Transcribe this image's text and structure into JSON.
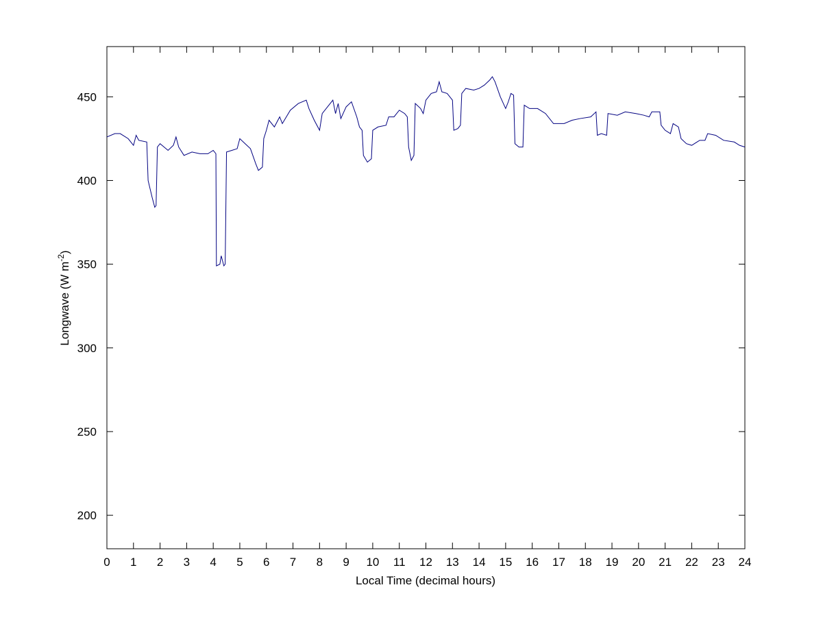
{
  "chart_data": {
    "type": "line",
    "xlabel": "Local Time (decimal hours)",
    "ylabel": {
      "text": "Longwave (W m",
      "superscript": "-2",
      "suffix": ")"
    },
    "xlim": [
      0,
      24
    ],
    "ylim": [
      180,
      480
    ],
    "xticks": [
      0,
      1,
      2,
      3,
      4,
      5,
      6,
      7,
      8,
      9,
      10,
      11,
      12,
      13,
      14,
      15,
      16,
      17,
      18,
      19,
      20,
      21,
      22,
      23,
      24
    ],
    "yticks": [
      200,
      250,
      300,
      350,
      400,
      450
    ],
    "grid": false,
    "series": [
      {
        "color": "#000080",
        "x": [
          0,
          0.3,
          0.5,
          0.8,
          1.0,
          1.1,
          1.2,
          1.5,
          1.55,
          1.7,
          1.8,
          1.85,
          1.9,
          2.0,
          2.3,
          2.5,
          2.6,
          2.7,
          2.9,
          3.2,
          3.5,
          3.8,
          4.0,
          4.1,
          4.12,
          4.25,
          4.3,
          4.4,
          4.45,
          4.5,
          4.7,
          4.9,
          5.0,
          5.2,
          5.4,
          5.6,
          5.7,
          5.85,
          5.9,
          6.0,
          6.1,
          6.3,
          6.5,
          6.6,
          6.9,
          7.2,
          7.5,
          7.6,
          7.8,
          8.0,
          8.1,
          8.3,
          8.5,
          8.6,
          8.7,
          8.8,
          9.0,
          9.2,
          9.4,
          9.5,
          9.6,
          9.65,
          9.8,
          9.95,
          10.0,
          10.2,
          10.5,
          10.6,
          10.8,
          11.0,
          11.2,
          11.3,
          11.35,
          11.45,
          11.55,
          11.6,
          11.8,
          11.9,
          12.0,
          12.2,
          12.4,
          12.5,
          12.6,
          12.8,
          13.0,
          13.05,
          13.2,
          13.3,
          13.35,
          13.5,
          13.8,
          14.0,
          14.2,
          14.4,
          14.5,
          14.6,
          14.8,
          15.0,
          15.1,
          15.2,
          15.3,
          15.35,
          15.5,
          15.65,
          15.7,
          15.9,
          16.2,
          16.5,
          16.8,
          17.2,
          17.5,
          17.8,
          18.2,
          18.4,
          18.45,
          18.6,
          18.8,
          18.85,
          19.2,
          19.5,
          19.9,
          20.2,
          20.4,
          20.5,
          20.8,
          20.85,
          21.0,
          21.2,
          21.3,
          21.5,
          21.6,
          21.8,
          22.0,
          22.3,
          22.5,
          22.6,
          22.9,
          23.2,
          23.6,
          23.8,
          24.0
        ],
        "values": [
          426,
          428,
          428,
          425,
          421,
          427,
          424,
          423,
          400,
          390,
          384,
          385,
          420,
          422,
          418,
          421,
          426,
          420,
          415,
          417,
          416,
          416,
          418,
          416,
          349,
          350,
          355,
          349,
          350,
          417,
          418,
          419,
          425,
          422,
          419,
          410,
          406,
          408,
          425,
          430,
          436,
          432,
          438,
          434,
          442,
          446,
          448,
          443,
          436,
          430,
          440,
          444,
          448,
          440,
          446,
          437,
          444,
          447,
          438,
          432,
          430,
          415,
          411,
          413,
          430,
          432,
          433,
          438,
          438,
          442,
          440,
          438,
          420,
          412,
          415,
          446,
          443,
          440,
          448,
          452,
          453,
          459,
          453,
          452,
          448,
          430,
          431,
          433,
          452,
          455,
          454,
          455,
          457,
          460,
          462,
          459,
          450,
          443,
          447,
          452,
          451,
          422,
          420,
          420,
          445,
          443,
          443,
          440,
          434,
          434,
          436,
          437,
          438,
          441,
          427,
          428,
          427,
          440,
          439,
          441,
          440,
          439,
          438,
          441,
          441,
          433,
          430,
          428,
          434,
          432,
          425,
          422,
          421,
          424,
          424,
          428,
          427,
          424,
          423,
          421,
          420
        ]
      }
    ]
  }
}
